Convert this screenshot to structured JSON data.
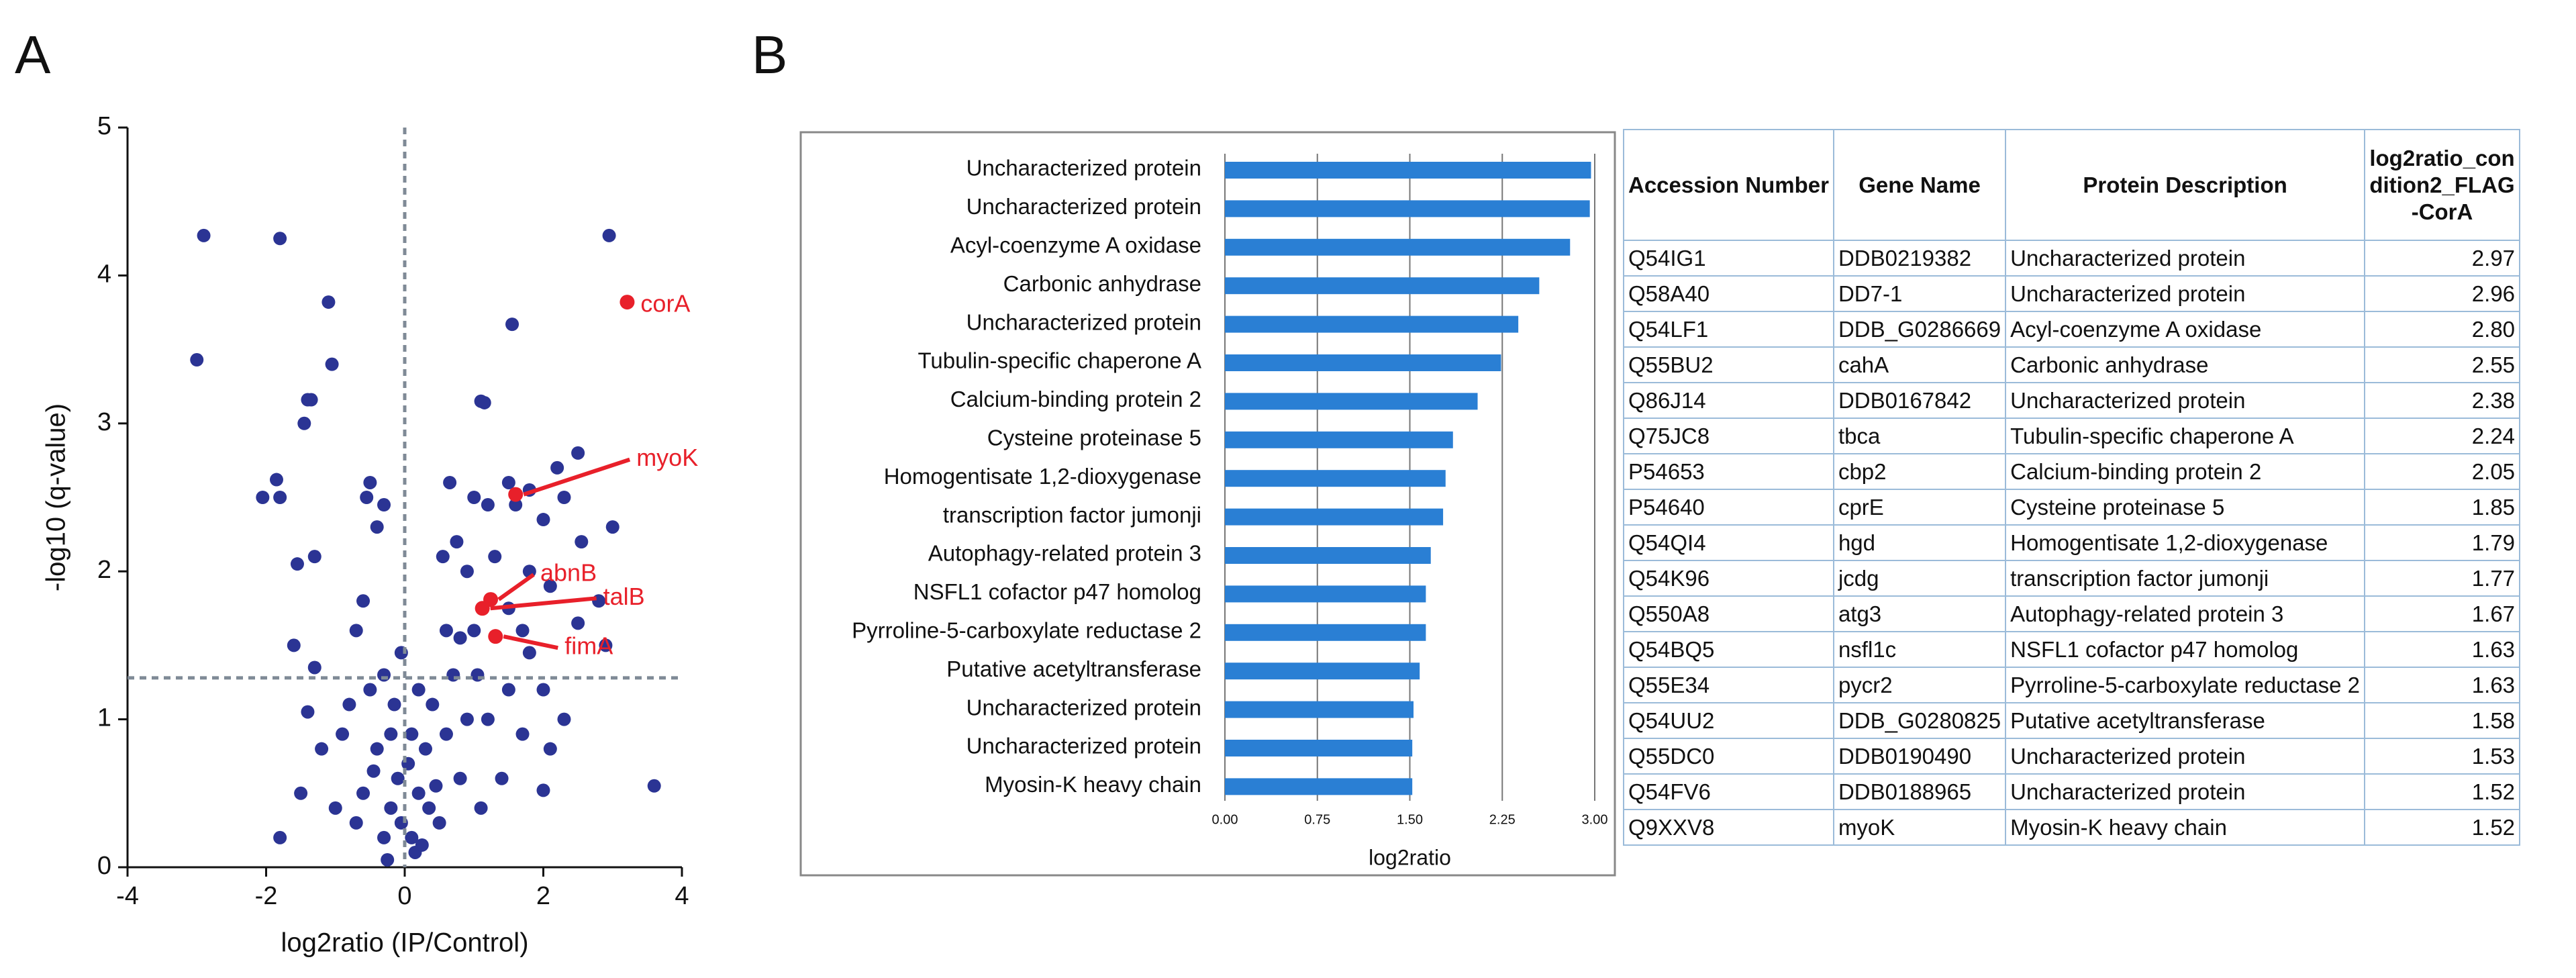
{
  "chart_data": [
    {
      "type": "scatter",
      "panel_label": "A",
      "xlabel": "log2ratio (IP/Control)",
      "ylabel": "-log10 (q-value)",
      "xlim": [
        -4,
        4
      ],
      "ylim": [
        0,
        5
      ],
      "xticks": [
        -4,
        -2,
        0,
        2,
        4
      ],
      "yticks": [
        0,
        1,
        2,
        3,
        4,
        5
      ],
      "color": "#2b3494",
      "hline": 1.28,
      "vline": 0,
      "line_color": "#7f8a96",
      "x": [
        -2.9,
        -3.0,
        -1.8,
        -1.1,
        -1.05,
        -1.35,
        -1.4,
        -1.45,
        -1.8,
        -2.05,
        -1.85,
        -0.5,
        -0.55,
        -0.4,
        -0.3,
        -1.3,
        -1.55,
        -1.6,
        -1.3,
        -1.4,
        -1.2,
        -0.9,
        -1.5,
        -1.8,
        -1.0,
        -0.8,
        -0.7,
        -0.6,
        -0.5,
        -0.3,
        -0.2,
        -0.1,
        -0.05,
        -0.3,
        -0.6,
        -0.4,
        -0.2,
        -0.15,
        -0.7,
        0.1,
        0.2,
        0.3,
        0.4,
        0.5,
        0.6,
        0.7,
        0.8,
        0.1,
        0.2,
        0.35,
        0.15,
        0.9,
        1.0,
        0.8,
        0.6,
        0.9,
        0.75,
        0.55,
        0.65,
        1.0,
        1.2,
        1.5,
        1.6,
        1.8,
        2.0,
        2.2,
        2.5,
        2.55,
        3.0,
        2.3,
        1.55,
        1.1,
        1.15,
        2.95,
        2.9,
        2.8,
        2.5,
        1.8,
        2.0,
        2.3,
        2.1,
        1.7,
        1.5,
        1.4,
        1.2,
        1.1,
        3.6,
        2.0,
        1.8,
        2.1,
        1.3,
        1.7,
        1.5,
        1.05,
        -0.25,
        0.05,
        -0.45,
        0.25,
        -0.05,
        0.45
      ],
      "y": [
        4.27,
        3.43,
        4.25,
        3.82,
        3.4,
        3.16,
        3.16,
        3.0,
        2.5,
        2.5,
        2.62,
        2.6,
        2.5,
        2.3,
        2.45,
        2.1,
        2.05,
        1.5,
        1.35,
        1.05,
        0.8,
        0.9,
        0.5,
        0.2,
        0.4,
        1.1,
        1.6,
        1.8,
        1.2,
        1.3,
        0.9,
        0.6,
        0.3,
        0.2,
        0.5,
        0.8,
        0.4,
        1.1,
        0.3,
        0.2,
        0.5,
        0.8,
        1.1,
        0.3,
        0.9,
        1.3,
        0.6,
        0.9,
        1.2,
        0.4,
        0.1,
        1.0,
        1.6,
        1.55,
        1.6,
        2.0,
        2.2,
        2.1,
        2.6,
        2.5,
        2.45,
        2.6,
        2.45,
        2.55,
        2.35,
        2.7,
        2.8,
        2.2,
        2.3,
        2.5,
        3.67,
        3.15,
        3.14,
        4.27,
        1.5,
        1.8,
        1.65,
        1.45,
        1.2,
        1.0,
        0.8,
        0.9,
        1.2,
        0.6,
        1.0,
        0.4,
        0.55,
        0.52,
        2.0,
        1.9,
        2.1,
        1.6,
        1.75,
        1.3,
        0.05,
        0.7,
        0.65,
        0.15,
        1.45,
        0.55
      ],
      "annotations": [
        {
          "text": "corA",
          "x": 3.21,
          "y": 3.82,
          "color": "#e8202a"
        },
        {
          "text": "myoK",
          "x": 1.6,
          "y": 2.52,
          "color": "#e8202a"
        },
        {
          "text": "abnB",
          "x": 1.24,
          "y": 1.81,
          "color": "#e8202a"
        },
        {
          "text": "talB",
          "x": 1.12,
          "y": 1.75,
          "color": "#e8202a"
        },
        {
          "text": "fimA",
          "x": 1.31,
          "y": 1.56,
          "color": "#e8202a"
        }
      ]
    },
    {
      "type": "bar",
      "panel_label": "B",
      "orientation": "horizontal",
      "xlabel": "log2ratio",
      "color": "#2a7fd4",
      "grid": true,
      "xlim": [
        0,
        3
      ],
      "xticks": [
        {
          "value": 0,
          "label": "0.00"
        },
        {
          "value": 0.75,
          "label": "0.75"
        },
        {
          "value": 1.5,
          "label": "1.50"
        },
        {
          "value": 2.25,
          "label": "2.25"
        },
        {
          "value": 3,
          "label": "3.00"
        }
      ],
      "categories": [
        "Uncharacterized protein",
        "Uncharacterized protein",
        "Acyl-coenzyme A oxidase",
        "Carbonic anhydrase",
        "Uncharacterized protein",
        "Tubulin-specific chaperone A",
        "Calcium-binding protein 2",
        "Cysteine proteinase 5",
        "Homogentisate 1,2-dioxygenase",
        "transcription factor jumonji",
        "Autophagy-related protein 3",
        "NSFL1 cofactor p47 homolog",
        "Pyrroline-5-carboxylate reductase 2",
        "Putative acetyltransferase",
        "Uncharacterized protein",
        "Uncharacterized protein",
        "Myosin-K heavy chain"
      ],
      "values": [
        2.97,
        2.96,
        2.8,
        2.55,
        2.38,
        2.24,
        2.05,
        1.85,
        1.79,
        1.77,
        1.67,
        1.63,
        1.63,
        1.58,
        1.53,
        1.52,
        1.52
      ]
    }
  ],
  "table": {
    "columns": [
      "Accession Number",
      "Gene Name",
      "Protein Description",
      "log2ratio_condition2_FLAG-CorA"
    ],
    "rows": [
      [
        "Q54IG1",
        "DDB0219382",
        "Uncharacterized protein",
        "2.97"
      ],
      [
        "Q58A40",
        "DD7-1",
        "Uncharacterized protein",
        "2.96"
      ],
      [
        "Q54LF1",
        "DDB_G0286669",
        "Acyl-coenzyme A oxidase",
        "2.80"
      ],
      [
        "Q55BU2",
        "cahA",
        "Carbonic anhydrase",
        "2.55"
      ],
      [
        "Q86J14",
        "DDB0167842",
        "Uncharacterized protein",
        "2.38"
      ],
      [
        "Q75JC8",
        "tbca",
        "Tubulin-specific chaperone A",
        "2.24"
      ],
      [
        "P54653",
        "cbp2",
        "Calcium-binding protein 2",
        "2.05"
      ],
      [
        "P54640",
        "cprE",
        "Cysteine proteinase 5",
        "1.85"
      ],
      [
        "Q54QI4",
        "hgd",
        "Homogentisate 1,2-dioxygenase",
        "1.79"
      ],
      [
        "Q54K96",
        "jcdg",
        "transcription factor jumonji",
        "1.77"
      ],
      [
        "Q550A8",
        "atg3",
        "Autophagy-related protein 3",
        "1.67"
      ],
      [
        "Q54BQ5",
        "nsfl1c",
        "NSFL1 cofactor p47 homolog",
        "1.63"
      ],
      [
        "Q55E34",
        "pycr2",
        "Pyrroline-5-carboxylate reductase 2",
        "1.63"
      ],
      [
        "Q54UU2",
        "DDB_G0280825",
        "Putative acetyltransferase",
        "1.58"
      ],
      [
        "Q55DC0",
        "DDB0190490",
        "Uncharacterized protein",
        "1.53"
      ],
      [
        "Q54FV6",
        "DDB0188965",
        "Uncharacterized protein",
        "1.52"
      ],
      [
        "Q9XXV8",
        "myoK",
        "Myosin-K heavy chain",
        "1.52"
      ]
    ]
  }
}
